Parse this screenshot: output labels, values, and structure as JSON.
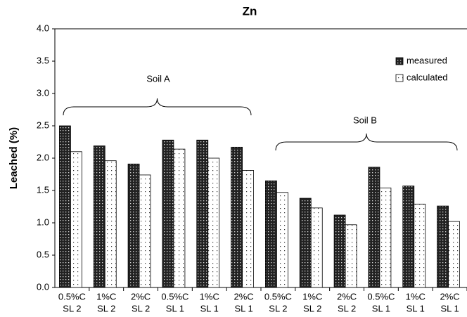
{
  "chart_data": {
    "type": "bar",
    "title": "Zn",
    "y_label": "Leached (%)",
    "categories": [
      [
        "0.5%C",
        "SL 2"
      ],
      [
        "1%C",
        "SL 2"
      ],
      [
        "2%C",
        "SL 2"
      ],
      [
        "0.5%C",
        "SL 1"
      ],
      [
        "1%C",
        "SL 1"
      ],
      [
        "2%C",
        "SL 1"
      ],
      [
        "0.5%C",
        "SL 2"
      ],
      [
        "1%C",
        "SL 2"
      ],
      [
        "2%C",
        "SL 2"
      ],
      [
        "0.5%C",
        "SL 1"
      ],
      [
        "1%C",
        "SL 1"
      ],
      [
        "2%C",
        "SL 1"
      ]
    ],
    "series": [
      {
        "name": "measured",
        "color": "#222222",
        "values": [
          2.5,
          2.19,
          1.91,
          2.28,
          2.28,
          2.17,
          1.65,
          1.38,
          1.12,
          1.86,
          1.57,
          1.26
        ]
      },
      {
        "name": "calculated",
        "color": "#ffffff",
        "values": [
          2.1,
          1.96,
          1.74,
          2.14,
          2.0,
          1.81,
          1.47,
          1.23,
          0.97,
          1.54,
          1.29,
          1.02
        ]
      }
    ],
    "annotations": [
      "Soil A",
      "Soil B"
    ],
    "ylim": [
      0,
      4
    ],
    "yticks": [
      {
        "value": 0,
        "label": "0.0"
      },
      0.5,
      {
        "value": 1,
        "label": "1.0"
      },
      1.5,
      {
        "value": 2,
        "label": "2.0"
      },
      2.5,
      {
        "value": 3,
        "label": "3.0"
      },
      3.5,
      {
        "value": 4,
        "label": "4.0"
      }
    ],
    "legend": "upper right"
  }
}
